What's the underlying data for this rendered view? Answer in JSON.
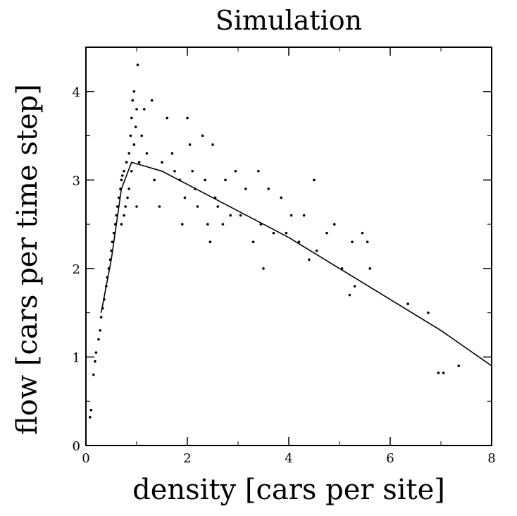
{
  "chart_data": {
    "type": "scatter",
    "title": "Simulation",
    "xlabel": "density [cars per site]",
    "ylabel": "flow [cars per time step]",
    "xlim": [
      0,
      8
    ],
    "ylim": [
      0,
      4.5
    ],
    "xticks": [
      0,
      2,
      4,
      6,
      8
    ],
    "yticks": [
      0,
      1,
      2,
      3,
      4
    ],
    "grid": false,
    "series": [
      {
        "kind": "scatter",
        "points": [
          [
            0.08,
            0.32
          ],
          [
            0.1,
            0.4
          ],
          [
            0.15,
            0.8
          ],
          [
            0.18,
            0.95
          ],
          [
            0.2,
            1.05
          ],
          [
            0.25,
            1.2
          ],
          [
            0.28,
            1.3
          ],
          [
            0.3,
            1.45
          ],
          [
            0.33,
            1.55
          ],
          [
            0.36,
            1.65
          ],
          [
            0.4,
            1.8
          ],
          [
            0.42,
            1.9
          ],
          [
            0.45,
            2.0
          ],
          [
            0.48,
            2.1
          ],
          [
            0.5,
            2.2
          ],
          [
            0.52,
            2.3
          ],
          [
            0.55,
            2.4
          ],
          [
            0.58,
            2.5
          ],
          [
            0.6,
            2.6
          ],
          [
            0.62,
            2.7
          ],
          [
            0.65,
            2.8
          ],
          [
            0.68,
            2.9
          ],
          [
            0.7,
            3.0
          ],
          [
            0.72,
            3.05
          ],
          [
            0.7,
            2.5
          ],
          [
            0.75,
            2.6
          ],
          [
            0.78,
            2.7
          ],
          [
            0.75,
            3.1
          ],
          [
            0.8,
            3.2
          ],
          [
            0.82,
            2.8
          ],
          [
            0.85,
            2.9
          ],
          [
            0.85,
            3.3
          ],
          [
            0.88,
            3.5
          ],
          [
            0.9,
            3.1
          ],
          [
            0.9,
            3.7
          ],
          [
            0.92,
            3.9
          ],
          [
            0.95,
            4.0
          ],
          [
            0.95,
            3.4
          ],
          [
            0.98,
            3.6
          ],
          [
            1.0,
            3.8
          ],
          [
            1.0,
            2.7
          ],
          [
            1.02,
            4.3
          ],
          [
            1.05,
            3.2
          ],
          [
            1.1,
            3.5
          ],
          [
            1.15,
            3.8
          ],
          [
            1.2,
            3.3
          ],
          [
            1.3,
            3.9
          ],
          [
            1.35,
            3.0
          ],
          [
            1.45,
            2.7
          ],
          [
            1.5,
            3.2
          ],
          [
            1.6,
            3.7
          ],
          [
            1.7,
            3.3
          ],
          [
            1.75,
            3.1
          ],
          [
            1.85,
            3.0
          ],
          [
            1.9,
            2.5
          ],
          [
            1.95,
            2.8
          ],
          [
            2.0,
            3.7
          ],
          [
            2.05,
            3.4
          ],
          [
            2.1,
            3.1
          ],
          [
            2.15,
            2.9
          ],
          [
            2.2,
            2.7
          ],
          [
            2.3,
            3.5
          ],
          [
            2.35,
            3.0
          ],
          [
            2.4,
            2.5
          ],
          [
            2.45,
            2.3
          ],
          [
            2.5,
            3.4
          ],
          [
            2.55,
            2.8
          ],
          [
            2.6,
            2.7
          ],
          [
            2.7,
            2.5
          ],
          [
            2.75,
            3.0
          ],
          [
            2.85,
            2.6
          ],
          [
            2.95,
            3.1
          ],
          [
            3.05,
            2.6
          ],
          [
            3.15,
            2.9
          ],
          [
            3.3,
            2.3
          ],
          [
            3.4,
            3.1
          ],
          [
            3.45,
            2.5
          ],
          [
            3.5,
            2.0
          ],
          [
            3.6,
            2.9
          ],
          [
            3.7,
            2.4
          ],
          [
            3.85,
            2.8
          ],
          [
            3.95,
            2.4
          ],
          [
            4.05,
            2.6
          ],
          [
            4.2,
            2.3
          ],
          [
            4.3,
            2.6
          ],
          [
            4.4,
            2.1
          ],
          [
            4.5,
            3.0
          ],
          [
            4.55,
            2.2
          ],
          [
            4.75,
            2.4
          ],
          [
            4.9,
            2.5
          ],
          [
            5.05,
            2.0
          ],
          [
            5.2,
            1.7
          ],
          [
            5.25,
            2.3
          ],
          [
            5.3,
            1.8
          ],
          [
            5.45,
            2.4
          ],
          [
            5.55,
            2.3
          ],
          [
            5.6,
            2.0
          ],
          [
            6.35,
            1.6
          ],
          [
            6.75,
            1.5
          ],
          [
            6.95,
            0.82
          ],
          [
            7.05,
            0.82
          ],
          [
            7.35,
            0.9
          ]
        ]
      },
      {
        "kind": "line",
        "points": [
          [
            0.3,
            1.5
          ],
          [
            0.5,
            2.1
          ],
          [
            0.7,
            2.9
          ],
          [
            0.9,
            3.2
          ],
          [
            1.2,
            3.15
          ],
          [
            1.5,
            3.1
          ],
          [
            2.0,
            2.95
          ],
          [
            3.0,
            2.65
          ],
          [
            4.0,
            2.35
          ],
          [
            5.0,
            2.0
          ],
          [
            6.0,
            1.65
          ],
          [
            7.0,
            1.3
          ],
          [
            8.0,
            0.9
          ]
        ]
      }
    ]
  }
}
